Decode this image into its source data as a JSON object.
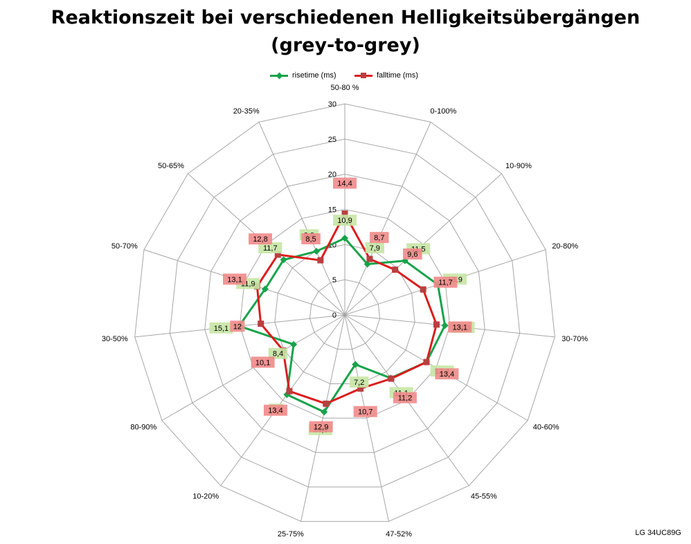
{
  "title_line1": "Reaktionszeit bei verschiedenen Helligkeitsübergängen",
  "title_line2": "(grey-to-grey)",
  "footer": "LG 34UC89G",
  "chart_data": {
    "type": "radar",
    "categories": [
      "50-80 %",
      "0-100%",
      "10-90%",
      "20-80%",
      "30-70%",
      "40-60%",
      "45-55%",
      "47-52%",
      "25-75%",
      "10-20%",
      "80-90%",
      "30-50%",
      "50-70%",
      "50-65%",
      "20-35%"
    ],
    "rlim": [
      0,
      30
    ],
    "rticks": [
      "0",
      "5",
      "10",
      "15",
      "20",
      "25",
      "30"
    ],
    "grid": true,
    "legend": "top",
    "series": [
      {
        "name": "risetime (ms)",
        "color": "#16a34a",
        "marker": "diamond",
        "values": [
          10.9,
          7.9,
          11.5,
          13.9,
          14.3,
          13.4,
          11.1,
          7.2,
          14.1,
          14,
          8.4,
          15.1,
          11.9,
          11.7,
          9.9
        ],
        "labels": [
          "10,9",
          "7,9",
          "11,5",
          "13,9",
          "14,3",
          "13,4",
          "11,1",
          "7,2",
          "14,1",
          "14",
          "8,4",
          "15,1",
          "11,9",
          "11,7",
          "9,9"
        ]
      },
      {
        "name": "falltime (ms)",
        "color": "#dc1c1c",
        "marker": "square",
        "values": [
          14.4,
          8.7,
          9.6,
          11.7,
          13.1,
          13.4,
          11.2,
          10.7,
          12.9,
          13.4,
          10.1,
          12,
          13.1,
          12.8,
          8.5
        ],
        "labels": [
          "14,4",
          "8,7",
          "9,6",
          "11,7",
          "13,1",
          "13,4",
          "11,2",
          "10,7",
          "12,9",
          "13,4",
          "10,1",
          "12",
          "13,1",
          "12,8",
          "8,5"
        ]
      }
    ]
  }
}
